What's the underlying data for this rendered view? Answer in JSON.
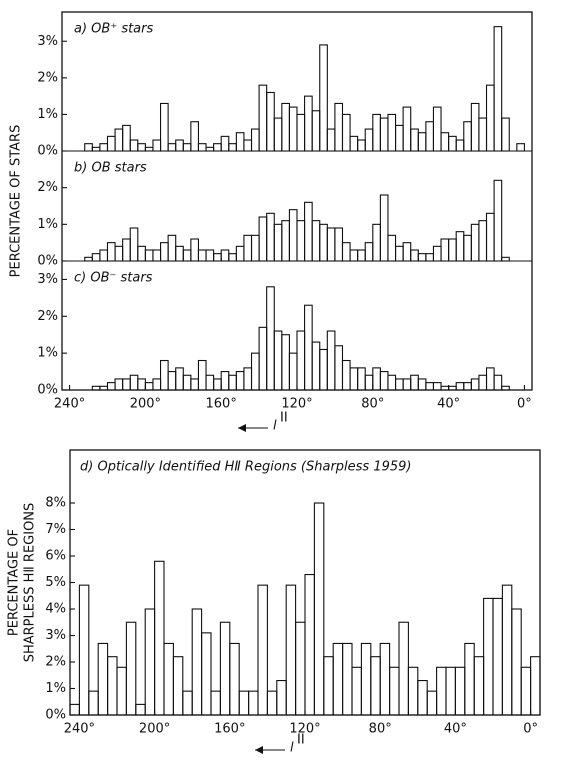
{
  "chart_data": [
    {
      "type": "histogram",
      "title": "a) OB⁺ stars",
      "y_label": "PERCENTAGE OF STARS",
      "bins": [
        240,
        236,
        232,
        228,
        224,
        220,
        216,
        212,
        208,
        204,
        200,
        196,
        192,
        188,
        184,
        180,
        176,
        172,
        168,
        164,
        160,
        156,
        152,
        148,
        144,
        140,
        136,
        132,
        128,
        124,
        120,
        116,
        112,
        108,
        104,
        100,
        96,
        92,
        88,
        84,
        80,
        76,
        72,
        68,
        64,
        60,
        56,
        52,
        48,
        44,
        40,
        36,
        32,
        28,
        24,
        20,
        16,
        12,
        8,
        4,
        0
      ],
      "values": [
        0,
        0,
        0.2,
        0.1,
        0.2,
        0.4,
        0.6,
        0.7,
        0.3,
        0.2,
        0.1,
        0.3,
        1.3,
        0.2,
        0.3,
        0.2,
        0.8,
        0.2,
        0.1,
        0.2,
        0.4,
        0.2,
        0.5,
        0.3,
        0.6,
        1.8,
        1.6,
        0.9,
        1.3,
        1.2,
        1.0,
        1.5,
        1.1,
        2.9,
        0.6,
        1.3,
        1.0,
        0.4,
        0.3,
        0.6,
        1.0,
        0.9,
        1.0,
        0.7,
        1.2,
        0.6,
        0.5,
        0.8,
        1.2,
        0.5,
        0.4,
        0.3,
        0.8,
        1.3,
        0.9,
        1.8,
        3.4,
        0.9,
        0,
        0.2
      ],
      "xlim": [
        244,
        -4
      ],
      "ylim": [
        0,
        3.8
      ],
      "yticks": [
        {
          "value": 0,
          "label": "0%"
        },
        {
          "value": 1,
          "label": "1%"
        },
        {
          "value": 2,
          "label": "2%"
        },
        {
          "value": 3,
          "label": "3%"
        }
      ]
    },
    {
      "type": "histogram",
      "title": "b) OB   stars",
      "bins": [
        240,
        236,
        232,
        228,
        224,
        220,
        216,
        212,
        208,
        204,
        200,
        196,
        192,
        188,
        184,
        180,
        176,
        172,
        168,
        164,
        160,
        156,
        152,
        148,
        144,
        140,
        136,
        132,
        128,
        124,
        120,
        116,
        112,
        108,
        104,
        100,
        96,
        92,
        88,
        84,
        80,
        76,
        72,
        68,
        64,
        60,
        56,
        52,
        48,
        44,
        40,
        36,
        32,
        28,
        24,
        20,
        16,
        12,
        8,
        4,
        0
      ],
      "values": [
        0,
        0,
        0.1,
        0.2,
        0.3,
        0.5,
        0.4,
        0.6,
        0.9,
        0.4,
        0.3,
        0.3,
        0.5,
        0.7,
        0.4,
        0.3,
        0.6,
        0.3,
        0.3,
        0.2,
        0.3,
        0.2,
        0.4,
        0.7,
        0.7,
        1.2,
        1.3,
        1.0,
        1.1,
        1.4,
        1.1,
        1.6,
        1.1,
        1.0,
        0.9,
        0.9,
        0.5,
        0.3,
        0.3,
        0.5,
        1.0,
        1.8,
        0.7,
        0.4,
        0.5,
        0.3,
        0.2,
        0.2,
        0.4,
        0.6,
        0.6,
        0.8,
        0.7,
        1.0,
        1.1,
        1.3,
        2.2,
        0.1,
        0,
        0
      ],
      "xlim": [
        244,
        -4
      ],
      "ylim": [
        0,
        3
      ],
      "yticks": [
        {
          "value": 0,
          "label": "0%"
        },
        {
          "value": 1,
          "label": "1%"
        },
        {
          "value": 2,
          "label": "2%"
        }
      ]
    },
    {
      "type": "histogram",
      "title": "c) OB⁻ stars",
      "x_label": "l",
      "x_label_sup": "II",
      "bins": [
        240,
        236,
        232,
        228,
        224,
        220,
        216,
        212,
        208,
        204,
        200,
        196,
        192,
        188,
        184,
        180,
        176,
        172,
        168,
        164,
        160,
        156,
        152,
        148,
        144,
        140,
        136,
        132,
        128,
        124,
        120,
        116,
        112,
        108,
        104,
        100,
        96,
        92,
        88,
        84,
        80,
        76,
        72,
        68,
        64,
        60,
        56,
        52,
        48,
        44,
        40,
        36,
        32,
        28,
        24,
        20,
        16,
        12,
        8,
        4,
        0
      ],
      "values": [
        0,
        0,
        0,
        0.1,
        0.1,
        0.2,
        0.3,
        0.3,
        0.4,
        0.3,
        0.2,
        0.3,
        0.8,
        0.5,
        0.6,
        0.4,
        0.3,
        0.8,
        0.4,
        0.3,
        0.5,
        0.4,
        0.5,
        0.6,
        1.0,
        1.7,
        2.8,
        1.6,
        1.5,
        1.0,
        1.6,
        2.3,
        1.3,
        1.1,
        1.6,
        1.2,
        0.8,
        0.6,
        0.6,
        0.4,
        0.6,
        0.5,
        0.4,
        0.3,
        0.3,
        0.4,
        0.3,
        0.2,
        0.2,
        0.1,
        0.1,
        0.2,
        0.2,
        0.3,
        0.4,
        0.6,
        0.4,
        0.1,
        0,
        0
      ],
      "xlim": [
        244,
        -4
      ],
      "ylim": [
        0,
        3.5
      ],
      "yticks": [
        {
          "value": 0,
          "label": "0%"
        },
        {
          "value": 1,
          "label": "1%"
        },
        {
          "value": 2,
          "label": "2%"
        },
        {
          "value": 3,
          "label": "3%"
        }
      ],
      "xticks": [
        {
          "value": 240,
          "label": "240°"
        },
        {
          "value": 200,
          "label": "200°"
        },
        {
          "value": 160,
          "label": "160°"
        },
        {
          "value": 120,
          "label": "120°"
        },
        {
          "value": 80,
          "label": "80°"
        },
        {
          "value": 40,
          "label": "40°"
        },
        {
          "value": 0,
          "label": "0°"
        }
      ]
    },
    {
      "type": "histogram",
      "title": "d) Optically Identified HⅡ Regions (Sharpless 1959)",
      "y_label": [
        "PERCENTAGE OF",
        "SHARPLESS HⅡ REGIONS"
      ],
      "x_label": "l",
      "x_label_sup": "II",
      "bins": [
        245,
        240,
        235,
        230,
        225,
        220,
        215,
        210,
        205,
        200,
        195,
        190,
        185,
        180,
        175,
        170,
        165,
        160,
        155,
        150,
        145,
        140,
        135,
        130,
        125,
        120,
        115,
        110,
        105,
        100,
        95,
        90,
        85,
        80,
        75,
        70,
        65,
        60,
        55,
        50,
        45,
        40,
        35,
        30,
        25,
        20,
        15,
        10,
        5,
        0,
        -5
      ],
      "values": [
        0.4,
        4.9,
        0.9,
        2.7,
        2.2,
        1.8,
        3.5,
        0.4,
        4.0,
        5.8,
        2.7,
        2.2,
        0.9,
        4.0,
        3.1,
        0.9,
        3.5,
        2.7,
        0.9,
        0.9,
        4.9,
        0.9,
        1.3,
        4.9,
        3.5,
        5.3,
        8.0,
        2.2,
        2.7,
        2.7,
        1.8,
        2.7,
        2.2,
        2.7,
        1.8,
        3.5,
        1.8,
        1.3,
        0.9,
        1.8,
        1.8,
        1.8,
        2.7,
        2.2,
        4.4,
        4.4,
        4.9,
        4.0,
        1.8,
        2.2
      ],
      "xlim": [
        245,
        -5
      ],
      "ylim": [
        0,
        10
      ],
      "yticks": [
        {
          "value": 0,
          "label": "0%"
        },
        {
          "value": 1,
          "label": "1%"
        },
        {
          "value": 2,
          "label": "2%"
        },
        {
          "value": 3,
          "label": "3%"
        },
        {
          "value": 4,
          "label": "4%"
        },
        {
          "value": 5,
          "label": "5%"
        },
        {
          "value": 6,
          "label": "6%"
        },
        {
          "value": 7,
          "label": "7%"
        },
        {
          "value": 8,
          "label": "8%"
        }
      ],
      "xticks": [
        {
          "value": 240,
          "label": "240°"
        },
        {
          "value": 200,
          "label": "200°"
        },
        {
          "value": 160,
          "label": "160°"
        },
        {
          "value": 120,
          "label": "120°"
        },
        {
          "value": 80,
          "label": "80°"
        },
        {
          "value": 40,
          "label": "40°"
        },
        {
          "value": 0,
          "label": "0°"
        }
      ]
    }
  ]
}
